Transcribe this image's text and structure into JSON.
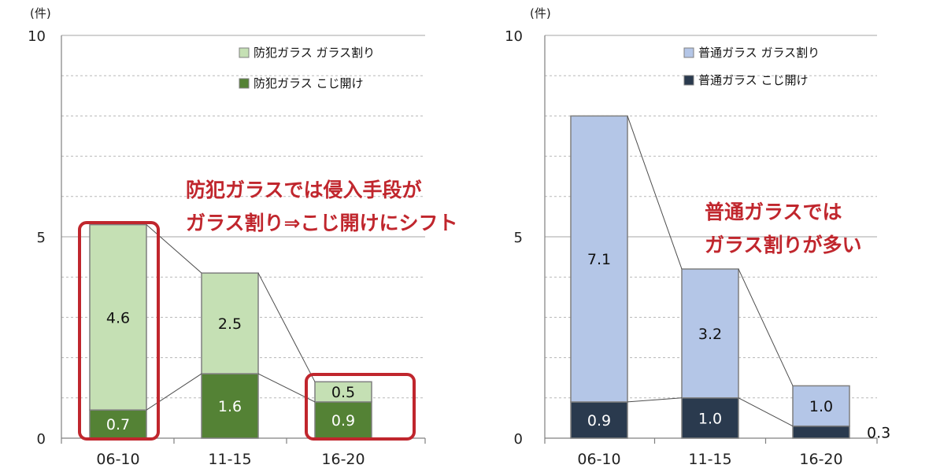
{
  "chart_data": [
    {
      "type": "bar",
      "stacked": true,
      "unit_label": "(件)",
      "categories": [
        "06-10",
        "11-15",
        "16-20"
      ],
      "ylim": [
        0,
        10
      ],
      "yticks": [
        "0",
        "5",
        "10"
      ],
      "grid": true,
      "legend_position": "top-right",
      "series": [
        {
          "name": "防犯ガラス こじ開け",
          "values": [
            0.7,
            1.6,
            0.9
          ],
          "labels": [
            "0.7",
            "1.6",
            "0.9"
          ],
          "color": "#548235",
          "label_color": "#ffffff"
        },
        {
          "name": "防犯ガラス ガラス割り",
          "values": [
            4.6,
            2.5,
            0.5
          ],
          "labels": [
            "4.6",
            "2.5",
            "0.5"
          ],
          "color": "#c5e0b4",
          "label_color": "#111111"
        }
      ],
      "annotation": [
        "防犯ガラスでは侵入手段が",
        "ガラス割り⇒こじ開けにシフト"
      ],
      "highlight_color": "#c0262d"
    },
    {
      "type": "bar",
      "stacked": true,
      "unit_label": "(件)",
      "categories": [
        "06-10",
        "11-15",
        "16-20"
      ],
      "ylim": [
        0,
        10
      ],
      "yticks": [
        "0",
        "5",
        "10"
      ],
      "grid": true,
      "legend_position": "top-right",
      "series": [
        {
          "name": "普通ガラス こじ開け",
          "values": [
            0.9,
            1.0,
            0.3
          ],
          "labels": [
            "0.9",
            "1.0",
            "0.3"
          ],
          "color": "#2a3a4e",
          "label_color": "#ffffff"
        },
        {
          "name": "普通ガラス ガラス割り",
          "values": [
            7.1,
            3.2,
            1.0
          ],
          "labels": [
            "7.1",
            "3.2",
            "1.0"
          ],
          "color": "#b4c6e7",
          "label_color": "#111111"
        }
      ],
      "annotation": [
        "普通ガラスでは",
        "ガラス割りが多い"
      ]
    }
  ]
}
